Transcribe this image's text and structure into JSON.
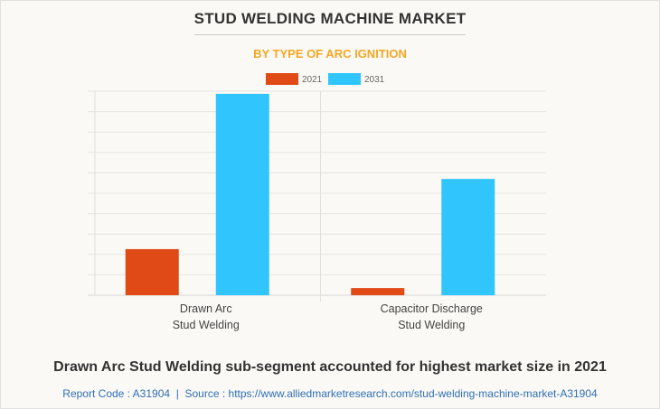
{
  "header": {
    "title": "STUD WELDING MACHINE MARKET",
    "subtitle": "BY TYPE OF ARC IGNITION"
  },
  "chart_data": {
    "type": "bar",
    "categories": [
      [
        "Drawn Arc",
        "Stud Welding"
      ],
      [
        "Capacitor Discharge",
        "Stud Welding"
      ]
    ],
    "series": [
      {
        "name": "2021",
        "color": "#e04a16",
        "values": [
          2.26,
          0.35
        ]
      },
      {
        "name": "2031",
        "color": "#31c5fd",
        "values": [
          9.87,
          5.7
        ]
      }
    ],
    "ylim": [
      0,
      10
    ],
    "grid": true,
    "y_tick_labels_shown": false,
    "legend": "top-center"
  },
  "footer": {
    "headline": "Drawn Arc Stud Welding sub-segment accounted for highest market size in 2021",
    "source": "Report Code : A31904  |  Source : https://www.alliedmarketresearch.com/stud-welding-machine-market-A31904"
  }
}
